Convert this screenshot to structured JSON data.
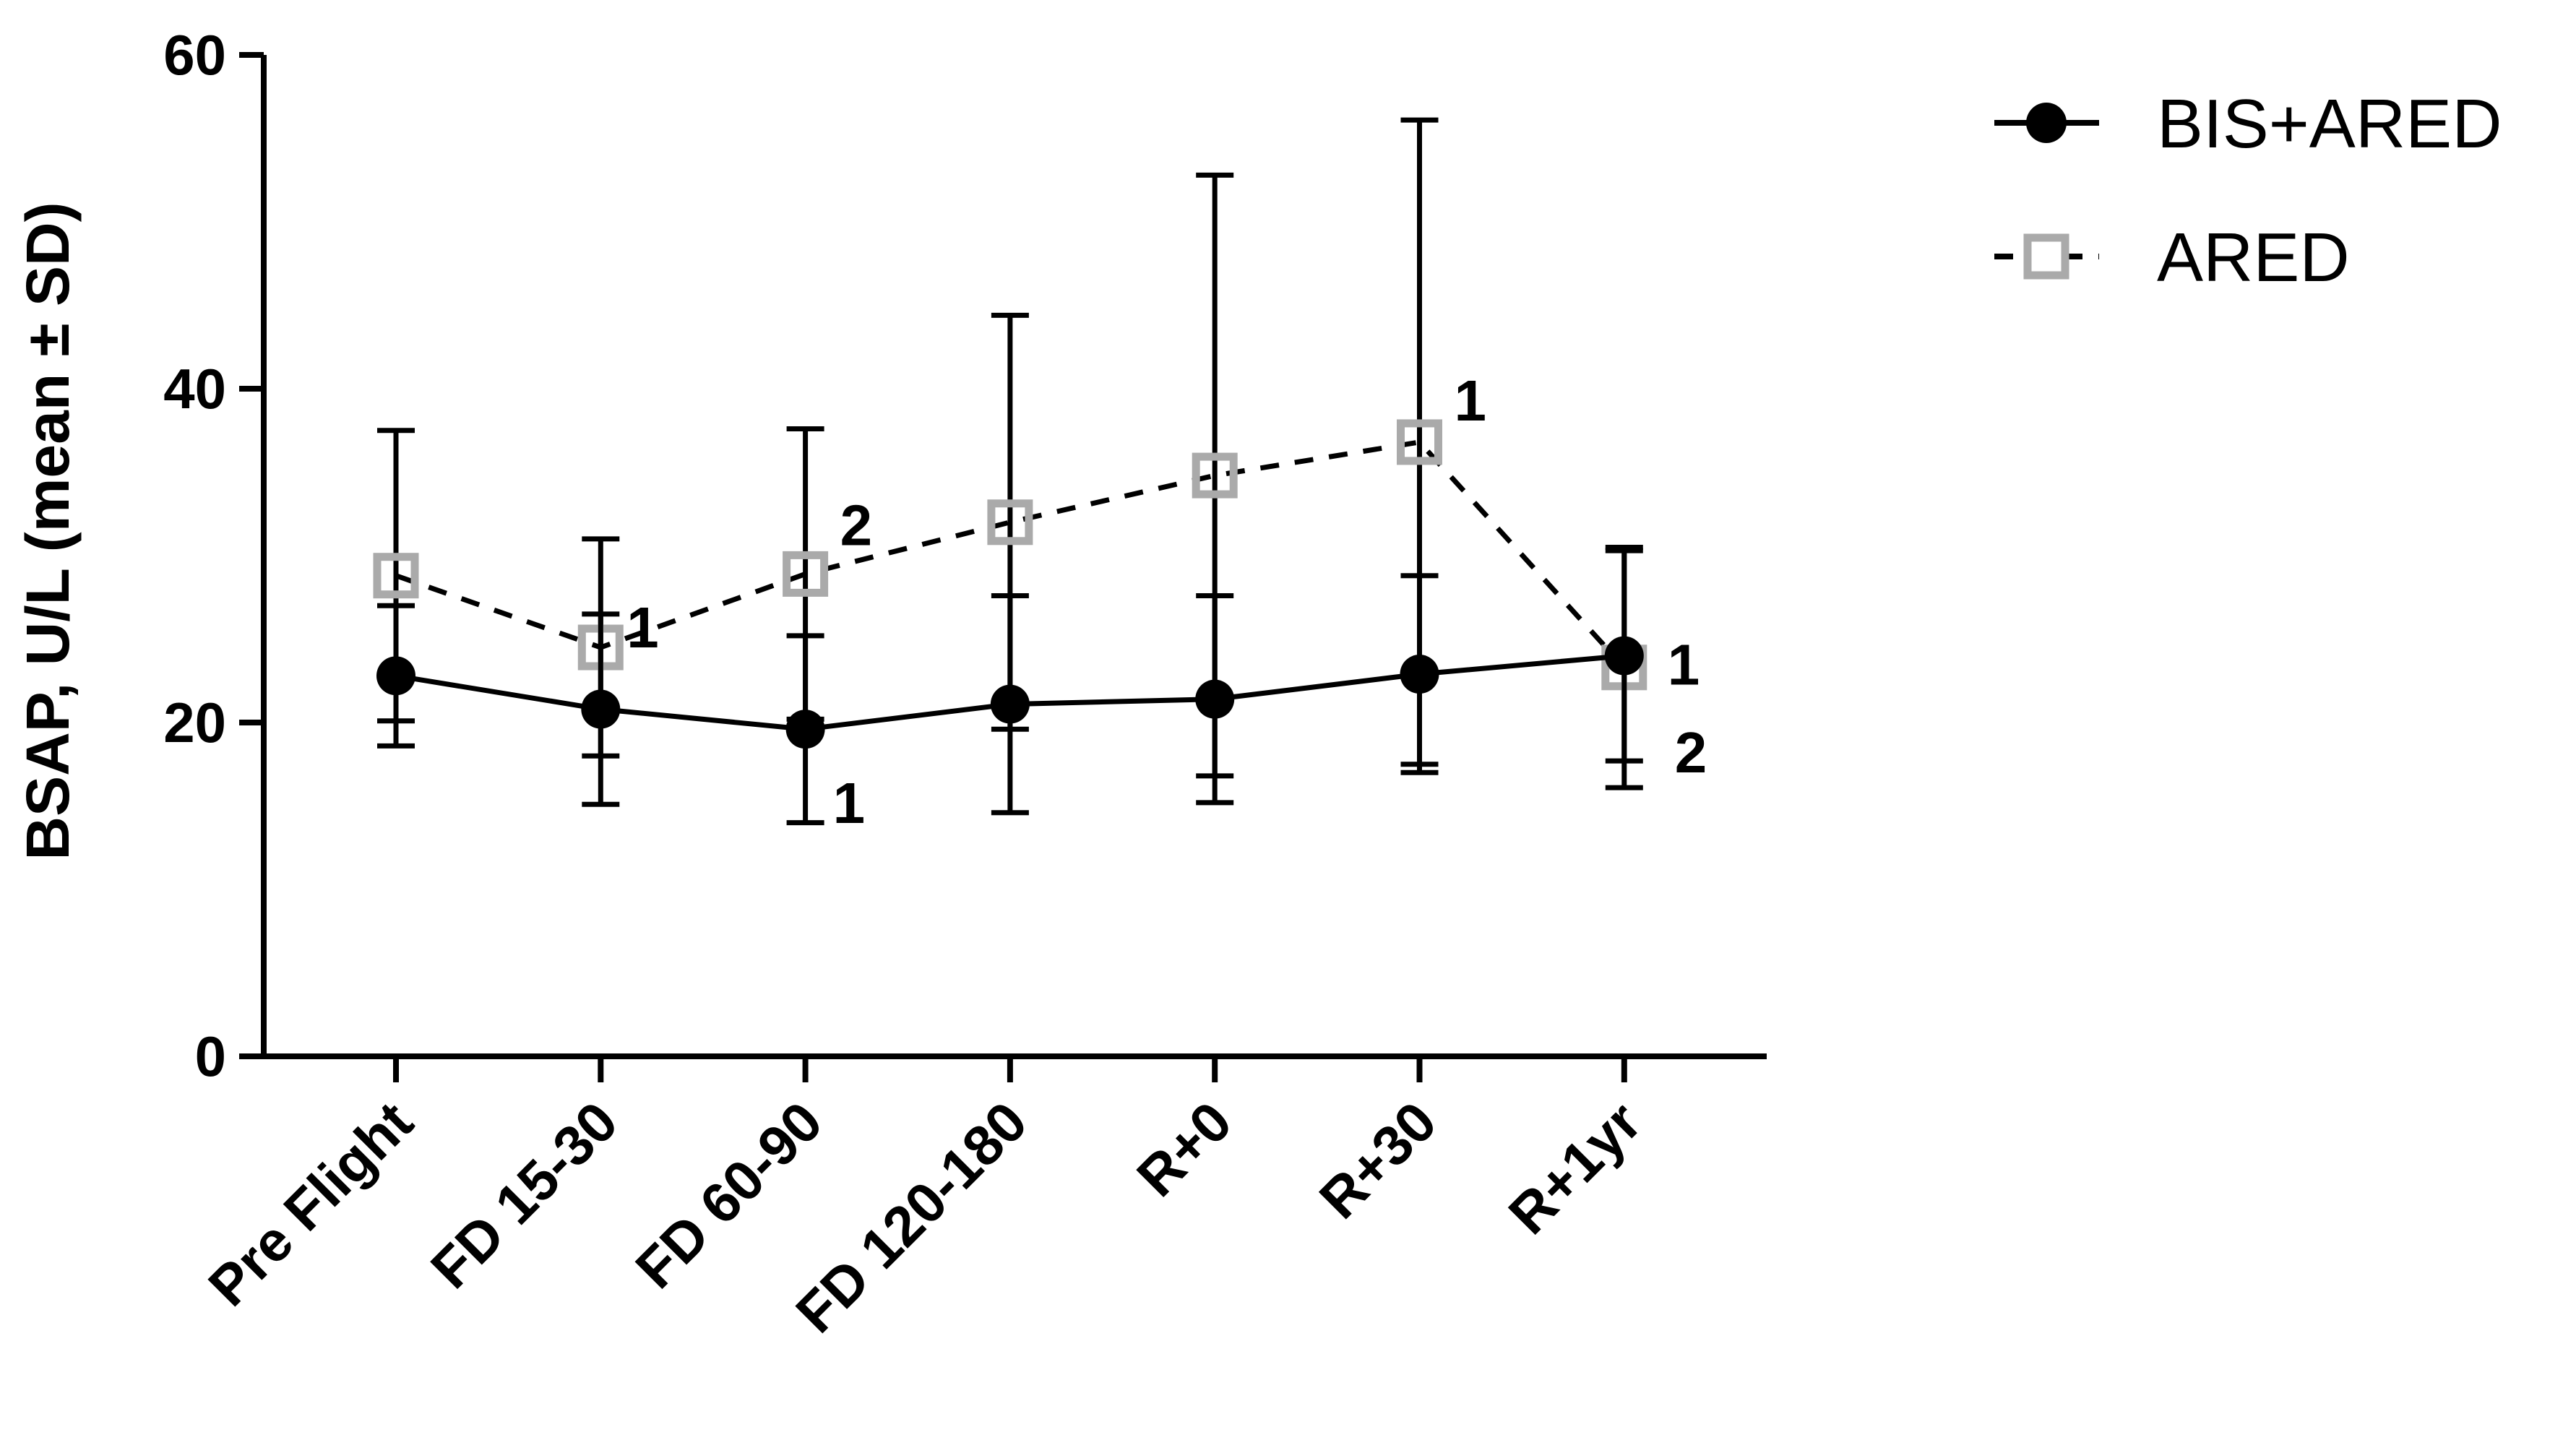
{
  "chart_data": {
    "type": "line",
    "ylabel": "BSAP, U/L (mean ± SD)",
    "xlabel": "",
    "ylim": [
      0,
      60
    ],
    "yticks": [
      0,
      20,
      40,
      60
    ],
    "categories": [
      "Pre Flight",
      "FD 15-30",
      "FD 60-90",
      "FD 120-180",
      "R+0",
      "R+30",
      "R+1yr"
    ],
    "grid": false,
    "legend_position": "top-right",
    "series": [
      {
        "name": "BIS+ARED",
        "style": "solid",
        "marker": "filled-circle",
        "color": "#000000",
        "values": [
          22.8,
          20.8,
          19.6,
          21.1,
          21.4,
          22.9,
          24.0
        ],
        "sd": [
          4.2,
          5.7,
          5.6,
          6.5,
          6.2,
          5.9,
          6.3
        ],
        "annotations": [
          "",
          "",
          "1",
          "",
          "",
          "",
          "1"
        ]
      },
      {
        "name": "ARED",
        "style": "dashed",
        "marker": "open-square",
        "color": "#aaaaaa",
        "values": [
          28.8,
          24.5,
          28.9,
          32.0,
          34.8,
          36.8,
          23.3
        ],
        "sd": [
          8.7,
          6.5,
          8.7,
          12.4,
          18.0,
          19.3,
          7.2
        ],
        "annotations": [
          "",
          "1",
          "2",
          "",
          "",
          "1",
          "2"
        ]
      }
    ]
  }
}
